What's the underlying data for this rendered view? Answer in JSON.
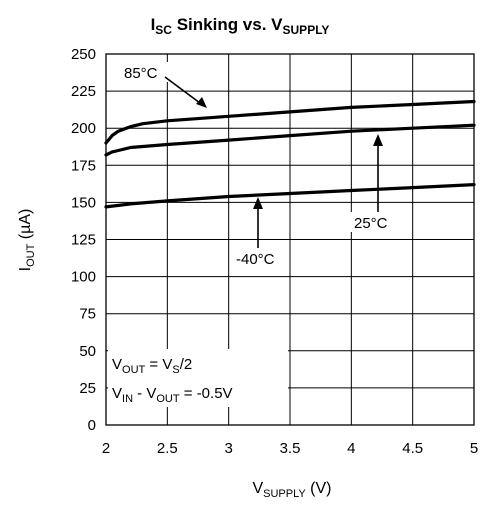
{
  "chart_data": {
    "type": "line",
    "title": {
      "main": "I",
      "sub": "SC",
      "mid": " Sinking vs. V",
      "sub2": "SUPPLY"
    },
    "xlabel": {
      "main": "V",
      "sub": "SUPPLY",
      "tail": " (V)"
    },
    "ylabel": {
      "main": "I",
      "sub": "OUT",
      "tail": " (µA)"
    },
    "xlim": [
      2,
      5
    ],
    "ylim": [
      0,
      250
    ],
    "x_ticks": [
      "2",
      "2.5",
      "3",
      "3.5",
      "4",
      "4.5",
      "5"
    ],
    "y_ticks": [
      "0",
      "25",
      "50",
      "75",
      "100",
      "125",
      "150",
      "175",
      "200",
      "225",
      "250"
    ],
    "grid": true,
    "series": [
      {
        "name": "85°C",
        "x": [
          2.0,
          2.05,
          2.1,
          2.2,
          2.3,
          2.5,
          3.0,
          3.5,
          4.0,
          4.5,
          5.0
        ],
        "y": [
          190,
          195,
          198,
          201,
          203,
          205,
          208,
          211,
          214,
          216,
          218
        ]
      },
      {
        "name": "25°C",
        "x": [
          2.0,
          2.05,
          2.1,
          2.2,
          2.5,
          3.0,
          3.5,
          4.0,
          4.5,
          5.0
        ],
        "y": [
          182,
          184,
          185,
          187,
          189,
          192,
          195,
          198,
          200,
          202
        ]
      },
      {
        "name": "-40°C",
        "x": [
          2.0,
          2.2,
          2.5,
          3.0,
          3.5,
          4.0,
          4.5,
          5.0
        ],
        "y": [
          147,
          149,
          151,
          154,
          156,
          158,
          160,
          162
        ]
      }
    ],
    "annotations": {
      "conditions_line1": {
        "a": "V",
        "a_sub": "OUT",
        "b": " = V",
        "b_sub": "S",
        "c": "/2"
      },
      "conditions_line2": {
        "a": "V",
        "a_sub": "IN",
        "b": " - V",
        "b_sub": "OUT",
        "c": " = -0.5V"
      }
    }
  }
}
